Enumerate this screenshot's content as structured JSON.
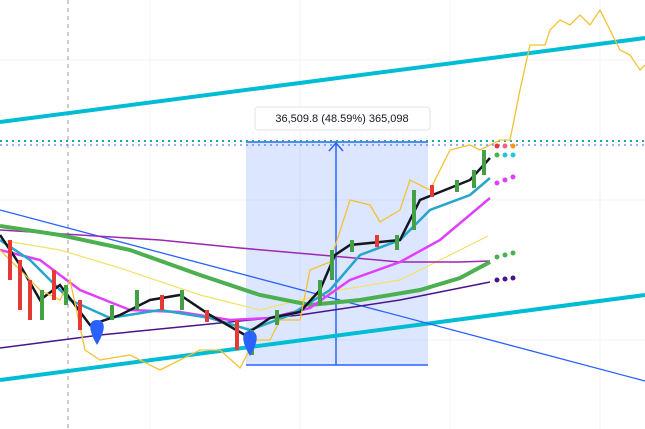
{
  "measure": {
    "label": "36,509.8 (48.59%) 365,098"
  }
}
